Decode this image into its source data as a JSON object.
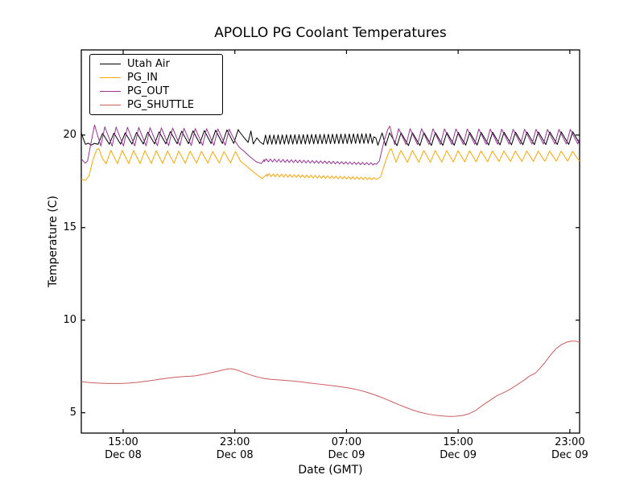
{
  "chart_data": {
    "type": "line",
    "title": "APOLLO PG Coolant Temperatures",
    "xlabel": "Date (GMT)",
    "ylabel": "Temperature (C)",
    "grid": false,
    "legend_position": "upper left",
    "x_unit": "hours since Dec 08 12:00 GMT",
    "x_range": [
      0,
      35.7
    ],
    "y_range": [
      3.9,
      24.6
    ],
    "y_ticks": [
      5,
      10,
      15,
      20
    ],
    "x_ticks": [
      {
        "t": 3,
        "time": "15:00",
        "date": "Dec 08"
      },
      {
        "t": 11,
        "time": "23:00",
        "date": "Dec 08"
      },
      {
        "t": 19,
        "time": "07:00",
        "date": "Dec 09"
      },
      {
        "t": 27,
        "time": "15:00",
        "date": "Dec 09"
      },
      {
        "t": 35,
        "time": "23:00",
        "date": "Dec 09"
      }
    ],
    "series": [
      {
        "name": "Utah Air",
        "color": "#000000",
        "segments": [
          {
            "kind": "points",
            "points": [
              [
                0,
                20.12
              ],
              [
                0.12,
                19.85
              ],
              [
                0.3,
                19.5
              ],
              [
                0.5,
                19.56
              ],
              [
                0.72,
                19.46
              ],
              [
                0.95,
                19.55
              ],
              [
                1.2,
                19.5
              ]
            ]
          },
          {
            "kind": "osc",
            "t0": 1.2,
            "t1": 11.3,
            "period": 0.81,
            "rise": 0.4,
            "lo0": 19.5,
            "lo1": 19.55,
            "hi0": 20.08,
            "hi1": 20.3
          },
          {
            "kind": "points",
            "points": [
              [
                11.6,
                19.92
              ],
              [
                11.95,
                19.6
              ],
              [
                12.15,
                20.22
              ],
              [
                12.32,
                19.52
              ],
              [
                12.58,
                19.85
              ],
              [
                12.82,
                19.62
              ],
              [
                13.05,
                19.5
              ]
            ]
          },
          {
            "kind": "osc",
            "t0": 13.05,
            "t1": 20.95,
            "period": 0.3,
            "rise": 0.5,
            "lo0": 19.5,
            "lo1": 19.55,
            "hi0": 20.0,
            "hi1": 20.08
          },
          {
            "kind": "points",
            "points": [
              [
                21.1,
                19.85
              ],
              [
                21.25,
                19.45
              ],
              [
                21.55,
                20.12
              ],
              [
                21.8,
                19.45
              ]
            ]
          },
          {
            "kind": "osc",
            "t0": 21.8,
            "t1": 35.7,
            "period": 0.82,
            "rise": 0.35,
            "lo0": 19.42,
            "lo1": 19.5,
            "hi0": 20.12,
            "hi1": 20.18
          }
        ]
      },
      {
        "name": "PG_IN",
        "color": "#ffa500",
        "segments": [
          {
            "kind": "points",
            "points": [
              [
                0,
                17.62
              ],
              [
                0.3,
                17.55
              ],
              [
                0.55,
                17.8
              ],
              [
                0.85,
                18.7
              ],
              [
                1.1,
                19.2
              ],
              [
                1.25,
                19.28
              ],
              [
                1.5,
                18.75
              ],
              [
                1.78,
                18.45
              ]
            ]
          },
          {
            "kind": "osc",
            "t0": 1.78,
            "t1": 10.95,
            "period": 0.81,
            "rise": 0.42,
            "lo0": 18.45,
            "lo1": 18.5,
            "hi0": 19.18,
            "hi1": 19.1
          },
          {
            "kind": "points",
            "points": [
              [
                11.05,
                19.1
              ],
              [
                11.4,
                18.6
              ],
              [
                11.8,
                18.35
              ],
              [
                12.1,
                18.15
              ],
              [
                12.6,
                17.85
              ],
              [
                12.95,
                17.65
              ],
              [
                13.3,
                17.88
              ]
            ]
          },
          {
            "kind": "osc",
            "t0": 13.3,
            "t1": 21.05,
            "period": 0.3,
            "rise": 0.5,
            "lo0": 17.76,
            "lo1": 17.58,
            "hi0": 17.92,
            "hi1": 17.7
          },
          {
            "kind": "points",
            "points": [
              [
                21.2,
                17.62
              ],
              [
                21.45,
                17.75
              ],
              [
                21.8,
                18.6
              ],
              [
                22.1,
                19.2
              ],
              [
                22.2,
                19.27
              ],
              [
                22.55,
                18.55
              ]
            ]
          },
          {
            "kind": "osc",
            "t0": 22.55,
            "t1": 35.7,
            "period": 0.82,
            "rise": 0.42,
            "lo0": 18.52,
            "lo1": 18.6,
            "hi0": 19.17,
            "hi1": 19.12
          }
        ]
      },
      {
        "name": "PG_OUT",
        "color": "#993399",
        "segments": [
          {
            "kind": "points",
            "points": [
              [
                0,
                18.72
              ],
              [
                0.28,
                18.48
              ],
              [
                0.45,
                18.6
              ],
              [
                0.7,
                19.6
              ],
              [
                0.95,
                20.55
              ],
              [
                1.2,
                19.9
              ],
              [
                1.4,
                19.42
              ]
            ]
          },
          {
            "kind": "osc",
            "t0": 1.4,
            "t1": 10.75,
            "period": 0.81,
            "rise": 0.35,
            "lo0": 19.4,
            "lo1": 19.45,
            "hi0": 20.45,
            "hi1": 20.32
          },
          {
            "kind": "points",
            "points": [
              [
                11.0,
                19.7
              ],
              [
                11.3,
                19.35
              ],
              [
                11.7,
                19.1
              ],
              [
                12.05,
                18.85
              ],
              [
                12.55,
                18.55
              ],
              [
                12.9,
                18.46
              ],
              [
                13.1,
                18.68
              ]
            ]
          },
          {
            "kind": "osc",
            "t0": 13.1,
            "t1": 21.0,
            "period": 0.3,
            "rise": 0.5,
            "lo0": 18.56,
            "lo1": 18.38,
            "hi0": 18.72,
            "hi1": 18.5
          },
          {
            "kind": "points",
            "points": [
              [
                21.15,
                18.42
              ],
              [
                21.35,
                18.6
              ],
              [
                21.7,
                19.7
              ],
              [
                21.95,
                20.3
              ],
              [
                22.1,
                20.48
              ],
              [
                22.45,
                19.5
              ]
            ]
          },
          {
            "kind": "osc",
            "t0": 22.45,
            "t1": 35.7,
            "period": 0.82,
            "rise": 0.35,
            "lo0": 19.48,
            "lo1": 19.52,
            "hi0": 20.35,
            "hi1": 20.3
          }
        ]
      },
      {
        "name": "PG_SHUTTLE",
        "color": "#cd5c5c",
        "segments": [
          {
            "kind": "points",
            "points": [
              [
                0,
                6.68
              ],
              [
                0.6,
                6.63
              ],
              [
                1.2,
                6.6
              ],
              [
                2,
                6.58
              ],
              [
                2.8,
                6.58
              ],
              [
                3.4,
                6.6
              ],
              [
                4,
                6.64
              ],
              [
                4.6,
                6.7
              ],
              [
                5.2,
                6.76
              ],
              [
                5.8,
                6.83
              ],
              [
                6.3,
                6.88
              ],
              [
                6.9,
                6.93
              ],
              [
                7.4,
                6.96
              ],
              [
                7.8,
                6.97
              ],
              [
                8.2,
                7
              ],
              [
                8.8,
                7.08
              ],
              [
                9.4,
                7.18
              ],
              [
                10,
                7.28
              ],
              [
                10.4,
                7.35
              ],
              [
                10.7,
                7.38
              ],
              [
                11,
                7.34
              ],
              [
                11.4,
                7.24
              ],
              [
                11.9,
                7.1
              ],
              [
                12.3,
                7
              ],
              [
                12.7,
                6.92
              ],
              [
                13.1,
                6.85
              ],
              [
                13.5,
                6.81
              ],
              [
                14,
                6.78
              ],
              [
                14.6,
                6.75
              ],
              [
                15.2,
                6.71
              ],
              [
                15.8,
                6.66
              ],
              [
                16.4,
                6.6
              ],
              [
                17,
                6.55
              ],
              [
                17.6,
                6.5
              ],
              [
                18.2,
                6.44
              ],
              [
                18.8,
                6.38
              ],
              [
                19.3,
                6.32
              ],
              [
                19.8,
                6.24
              ],
              [
                20.3,
                6.14
              ],
              [
                20.8,
                6.02
              ],
              [
                21.3,
                5.89
              ],
              [
                21.8,
                5.74
              ],
              [
                22.3,
                5.58
              ],
              [
                22.8,
                5.42
              ],
              [
                23.3,
                5.27
              ],
              [
                23.8,
                5.13
              ],
              [
                24.3,
                5.02
              ],
              [
                24.8,
                4.93
              ],
              [
                25.3,
                4.87
              ],
              [
                25.8,
                4.83
              ],
              [
                26.3,
                4.8
              ],
              [
                26.8,
                4.81
              ],
              [
                27.3,
                4.85
              ],
              [
                27.8,
                4.95
              ],
              [
                28.3,
                5.15
              ],
              [
                28.8,
                5.43
              ],
              [
                29.3,
                5.68
              ],
              [
                29.8,
                5.93
              ],
              [
                30.3,
                6.1
              ],
              [
                30.8,
                6.3
              ],
              [
                31.2,
                6.5
              ],
              [
                31.5,
                6.65
              ],
              [
                31.8,
                6.8
              ],
              [
                32,
                6.92
              ],
              [
                32.2,
                7.02
              ],
              [
                32.5,
                7.12
              ],
              [
                32.8,
                7.35
              ],
              [
                33.2,
                7.7
              ],
              [
                33.6,
                8.1
              ],
              [
                34,
                8.45
              ],
              [
                34.4,
                8.68
              ],
              [
                34.8,
                8.82
              ],
              [
                35.1,
                8.87
              ],
              [
                35.45,
                8.87
              ],
              [
                35.7,
                8.8
              ]
            ]
          }
        ]
      }
    ]
  },
  "colors": {
    "background": "#ffffff",
    "axes": "#000000",
    "text": "#000000"
  }
}
